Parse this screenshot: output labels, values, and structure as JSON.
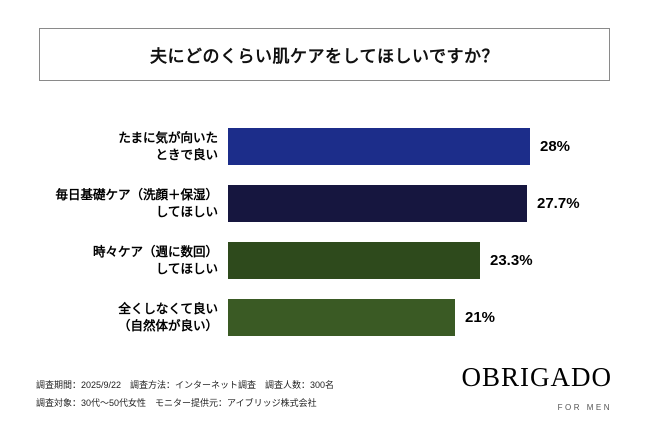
{
  "title": "夫にどのくらい肌ケアをしてほしいですか？",
  "chart_data": {
    "type": "bar",
    "orientation": "horizontal",
    "title": "夫にどのくらい肌ケアをしてほしいですか？",
    "categories": [
      "たまに気が向いたときで良い",
      "毎日基礎ケア（洗顔＋保湿）してほしい",
      "時々ケア（週に数回）してほしい",
      "全くしなくて良い（自然体が良い）"
    ],
    "category_lines": [
      [
        "たまに気が向いた",
        "ときで良い"
      ],
      [
        "毎日基礎ケア（洗顔＋保湿）",
        "してほしい"
      ],
      [
        "時々ケア（週に数回）",
        "してほしい"
      ],
      [
        "全くしなくて良い",
        "（自然体が良い）"
      ]
    ],
    "values": [
      28,
      27.7,
      23.3,
      21
    ],
    "value_labels": [
      "28%",
      "27.7%",
      "23.3%",
      "21%"
    ],
    "bar_colors": [
      "#1c2d8a",
      "#16163f",
      "#2e4a1c",
      "#3a5a24"
    ],
    "xlim": [
      0,
      30
    ],
    "legend": "none",
    "grid": false
  },
  "footer": {
    "line1": "調査期間：2025/9/22　調査方法：インターネット調査　調査人数：300名",
    "line2": "調査対象：30代〜50代女性　モニター提供元：アイブリッジ株式会社"
  },
  "logo": {
    "name": "OBRIGADO",
    "tagline": "FOR MEN"
  }
}
